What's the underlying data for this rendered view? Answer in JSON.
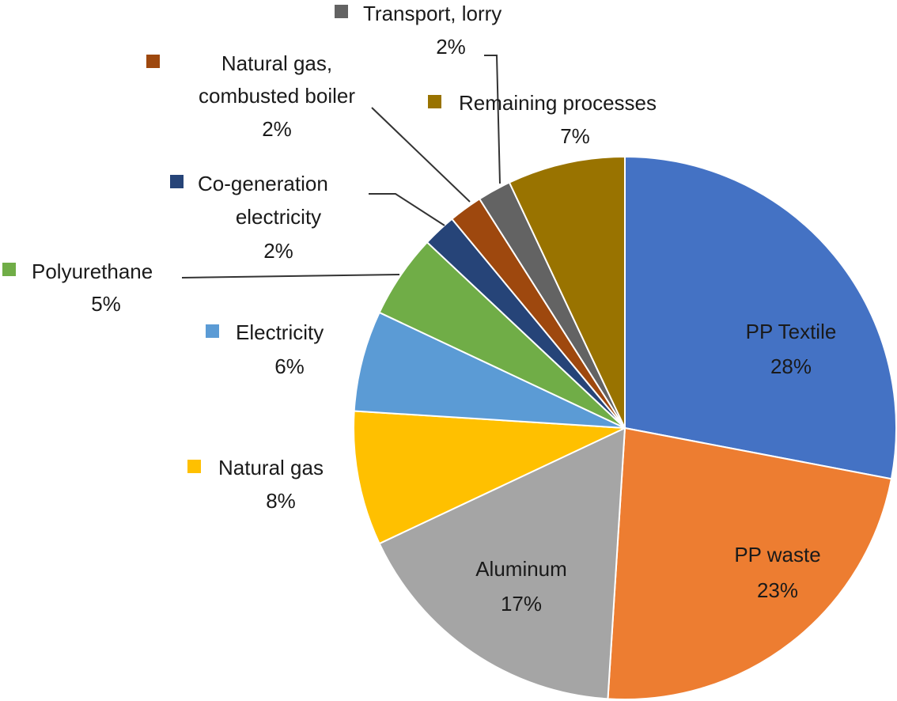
{
  "chart_data": {
    "type": "pie",
    "title": "",
    "start": "12 o'clock, clockwise",
    "slices": [
      {
        "key": "pp_textile",
        "name": "PP Textile",
        "value": 28,
        "label": "28%",
        "color": "#4472C4"
      },
      {
        "key": "pp_waste",
        "name": "PP waste",
        "value": 23,
        "label": "23%",
        "color": "#ED7D31"
      },
      {
        "key": "aluminum",
        "name": "Aluminum",
        "value": 17,
        "label": "17%",
        "color": "#A5A5A5"
      },
      {
        "key": "natural_gas",
        "name": "Natural gas",
        "value": 8,
        "label": "8%",
        "color": "#FFC000"
      },
      {
        "key": "electricity",
        "name": "Electricity",
        "value": 6,
        "label": "6%",
        "color": "#5B9BD5"
      },
      {
        "key": "polyurethane",
        "name": "Polyurethane",
        "value": 5,
        "label": "5%",
        "color": "#70AD47"
      },
      {
        "key": "cogen",
        "name": "Co-generation electricity",
        "name_lines": [
          "Co-generation",
          "electricity"
        ],
        "value": 2,
        "label": "2%",
        "color": "#264478"
      },
      {
        "key": "ng_boiler",
        "name": "Natural gas, combusted boiler",
        "name_lines": [
          "Natural gas,",
          "combusted boiler"
        ],
        "value": 2,
        "label": "2%",
        "color": "#9E480E"
      },
      {
        "key": "transport",
        "name": "Transport, lorry",
        "value": 2,
        "label": "2%",
        "color": "#636363"
      },
      {
        "key": "remaining",
        "name": "Remaining processes",
        "value": 7,
        "label": "7%",
        "color": "#997300"
      }
    ]
  }
}
